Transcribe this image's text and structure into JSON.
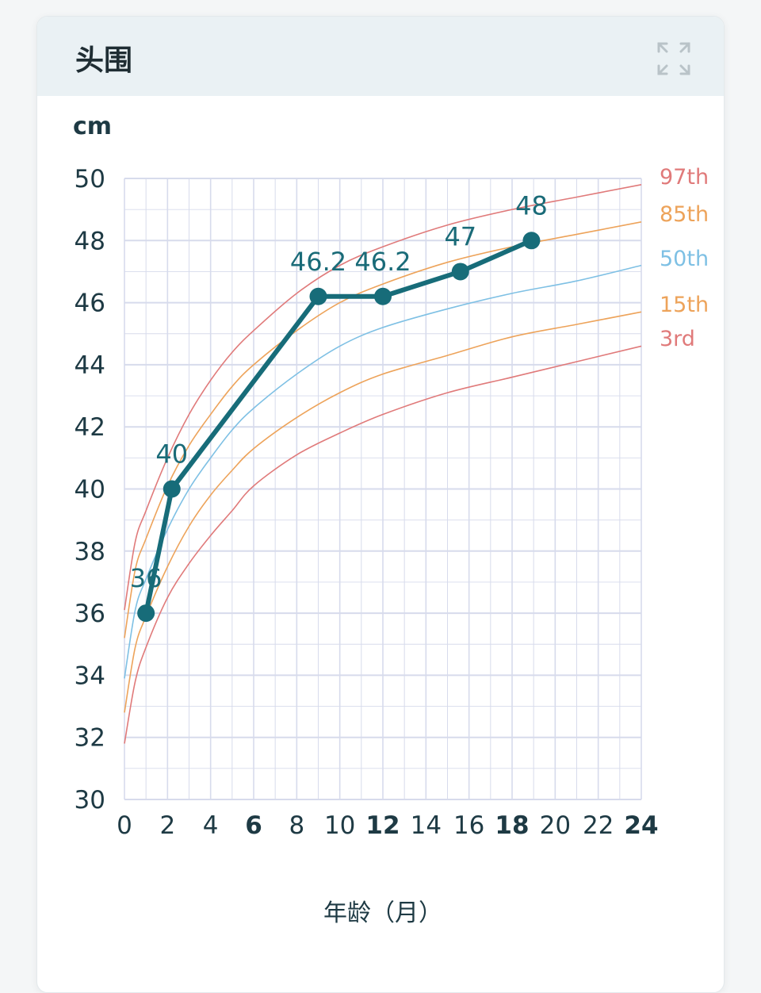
{
  "card": {
    "title": "头围"
  },
  "icons": {
    "expand": "expand-icon"
  },
  "colors": {
    "line": "#176c79",
    "grid": "#d7dbec",
    "p97": "#e07a7a",
    "p85": "#eda35a",
    "p50": "#7ec0e4",
    "p15": "#eda35a",
    "p3": "#e07a7a"
  },
  "chart_data": {
    "type": "line",
    "title": "头围",
    "ylabel": "cm",
    "xlabel": "年龄（月）",
    "xlim": [
      0,
      24
    ],
    "ylim": [
      30,
      50
    ],
    "x_ticks": [
      0,
      2,
      4,
      6,
      8,
      10,
      12,
      14,
      16,
      18,
      20,
      22,
      24
    ],
    "x_ticks_bold": [
      6,
      12,
      18,
      24
    ],
    "y_ticks": [
      30,
      32,
      34,
      36,
      38,
      40,
      42,
      44,
      46,
      48,
      50
    ],
    "grid": true,
    "measurements": {
      "name": "头围",
      "x": [
        1,
        2.2,
        9,
        12,
        15.6,
        18.9
      ],
      "y": [
        36,
        40,
        46.2,
        46.2,
        47,
        48
      ],
      "labels": [
        "36",
        "40",
        "46.2",
        "46.2",
        "47",
        "48"
      ]
    },
    "percentiles": [
      {
        "name": "97th",
        "x": [
          0,
          0.5,
          1,
          2,
          3,
          4,
          5,
          6,
          8,
          10,
          12,
          15,
          18,
          21,
          24
        ],
        "y": [
          36.1,
          38.3,
          39.3,
          41.0,
          42.4,
          43.5,
          44.4,
          45.1,
          46.3,
          47.2,
          47.8,
          48.5,
          49.0,
          49.4,
          49.8
        ]
      },
      {
        "name": "85th",
        "x": [
          0,
          0.5,
          1,
          2,
          3,
          4,
          5,
          6,
          8,
          10,
          12,
          15,
          18,
          21,
          24
        ],
        "y": [
          35.2,
          37.4,
          38.4,
          40.1,
          41.4,
          42.4,
          43.3,
          44.0,
          45.1,
          46.0,
          46.6,
          47.3,
          47.8,
          48.2,
          48.6
        ]
      },
      {
        "name": "50th",
        "x": [
          0,
          0.5,
          1,
          2,
          3,
          4,
          5,
          6,
          8,
          10,
          12,
          15,
          18,
          21,
          24
        ],
        "y": [
          33.9,
          36.1,
          37.1,
          38.7,
          40.0,
          41.0,
          41.9,
          42.6,
          43.7,
          44.6,
          45.2,
          45.8,
          46.3,
          46.7,
          47.2
        ]
      },
      {
        "name": "15th",
        "x": [
          0,
          0.5,
          1,
          2,
          3,
          4,
          5,
          6,
          8,
          10,
          12,
          15,
          18,
          21,
          24
        ],
        "y": [
          32.8,
          34.9,
          35.9,
          37.5,
          38.8,
          39.8,
          40.6,
          41.3,
          42.3,
          43.1,
          43.7,
          44.3,
          44.9,
          45.3,
          45.7
        ]
      },
      {
        "name": "3rd",
        "x": [
          0,
          0.5,
          1,
          2,
          3,
          4,
          5,
          6,
          8,
          10,
          12,
          15,
          18,
          21,
          24
        ],
        "y": [
          31.8,
          33.8,
          34.9,
          36.5,
          37.6,
          38.5,
          39.3,
          40.1,
          41.1,
          41.8,
          42.4,
          43.1,
          43.6,
          44.1,
          44.6
        ]
      }
    ]
  }
}
